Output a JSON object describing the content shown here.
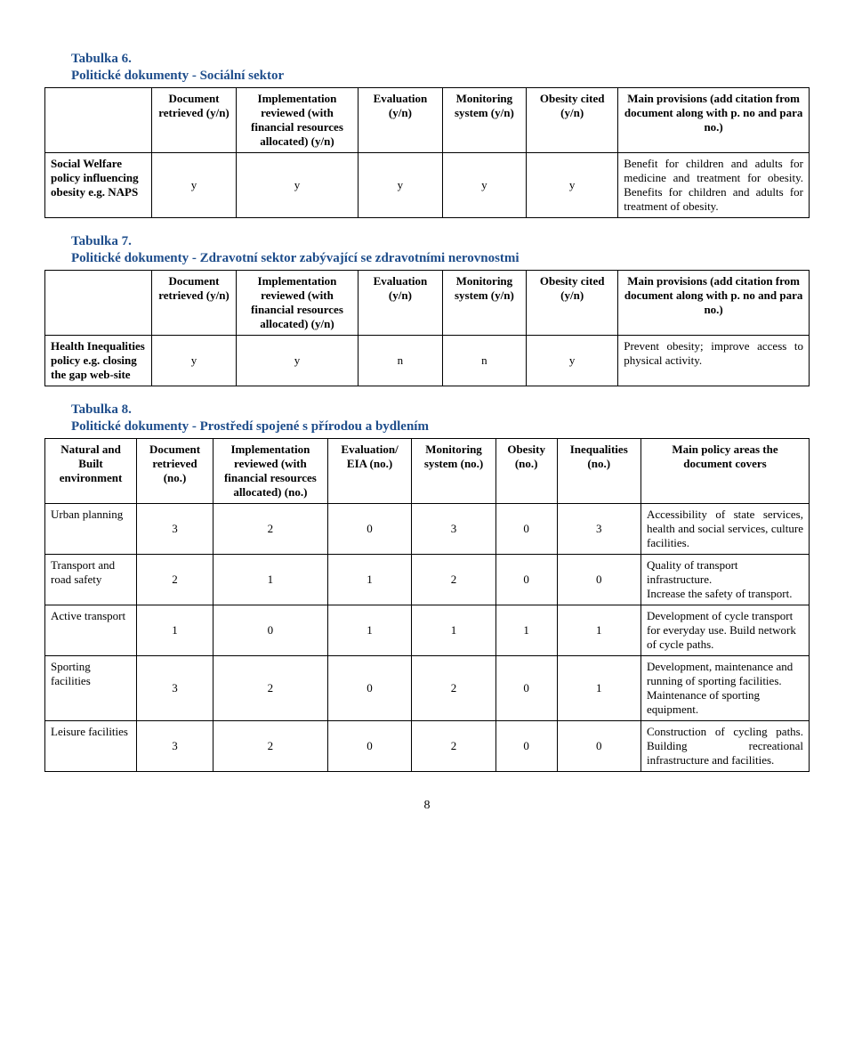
{
  "colors": {
    "heading": "#1e4d8b",
    "text": "#000000",
    "border": "#000000",
    "background": "#ffffff"
  },
  "typography": {
    "font_family": "Times New Roman",
    "body_fontsize_pt": 11,
    "heading_fontsize_pt": 12,
    "heading_bold": true
  },
  "page_number": "8",
  "table6": {
    "title": "Tabulka 6.",
    "subtitle": "Politické dokumenty - Sociální sektor",
    "headers": [
      "",
      "Document retrieved (y/n)",
      "Implementation reviewed (with financial resources allocated) (y/n)",
      "Evaluation (y/n)",
      "Monitoring system (y/n)",
      "Obesity cited (y/n)",
      "Main provisions (add citation from document along with p. no and para no.)"
    ],
    "rows": [
      {
        "label": "Social Welfare policy influencing obesity e.g. NAPS",
        "cells": [
          "y",
          "y",
          "y",
          "y",
          "y"
        ],
        "provisions": "Benefit for children and adults for medicine and treatment for obesity. Benefits for children and adults for treatment of obesity."
      }
    ]
  },
  "table7": {
    "title": "Tabulka 7.",
    "subtitle": "Politické dokumenty - Zdravotní sektor zabývající se zdravotními nerovnostmi",
    "headers": [
      "",
      "Document retrieved (y/n)",
      "Implementation reviewed (with financial resources allocated) (y/n)",
      "Evaluation (y/n)",
      "Monitoring system (y/n)",
      "Obesity cited (y/n)",
      "Main provisions (add citation from document along with p. no and para no.)"
    ],
    "rows": [
      {
        "label": "Health Inequalities policy e.g. closing the gap web-site",
        "cells": [
          "y",
          "y",
          "n",
          "n",
          "y"
        ],
        "provisions": "Prevent obesity; improve access to physical activity."
      }
    ]
  },
  "table8": {
    "title": "Tabulka 8.",
    "subtitle": "Politické dokumenty - Prostředí spojené s přírodou a bydlením",
    "headers": [
      "Natural and Built environment",
      "Document retrieved (no.)",
      "Implementation reviewed (with financial resources allocated) (no.)",
      "Evaluation/ EIA (no.)",
      "Monitoring system (no.)",
      "Obesity (no.)",
      "Inequalities (no.)",
      "Main policy areas the document covers"
    ],
    "rows": [
      {
        "label": "Urban planning",
        "cells": [
          "3",
          "2",
          "0",
          "3",
          "0",
          "3"
        ],
        "covers": "Accessibility of state services, health and social services, culture facilities."
      },
      {
        "label": "Transport and road safety",
        "cells": [
          "2",
          "1",
          "1",
          "2",
          "0",
          "0"
        ],
        "covers": "Quality of transport infrastructure.\nIncrease the safety of transport."
      },
      {
        "label": "Active transport",
        "cells": [
          "1",
          "0",
          "1",
          "1",
          "1",
          "1"
        ],
        "covers": "Development of cycle transport for everyday use. Build network of cycle paths."
      },
      {
        "label": "Sporting facilities",
        "cells": [
          "3",
          "2",
          "0",
          "2",
          "0",
          "1"
        ],
        "covers": "Development, maintenance and running of sporting facilities.\nMaintenance of sporting equipment."
      },
      {
        "label": "Leisure facilities",
        "cells": [
          "3",
          "2",
          "0",
          "2",
          "0",
          "0"
        ],
        "covers": "Construction of cycling paths. Building recreational infrastructure and facilities."
      }
    ]
  }
}
